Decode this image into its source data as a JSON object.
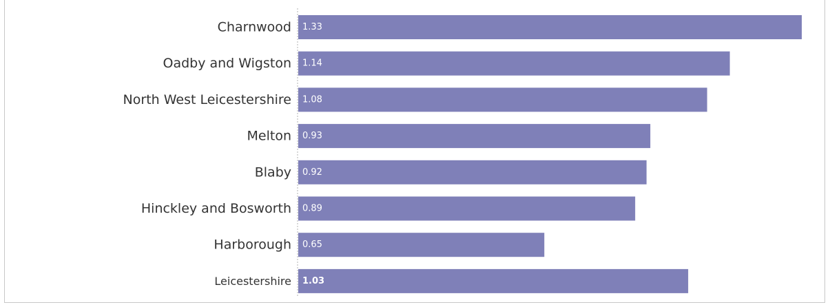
{
  "chart_data": {
    "type": "bar",
    "orientation": "horizontal",
    "categories": [
      "Charnwood",
      "Oadby and Wigston",
      "North West Leicestershire",
      "Melton",
      "Blaby",
      "Hinckley and Bosworth",
      "Harborough",
      "Leicestershire"
    ],
    "values": [
      1.33,
      1.14,
      1.08,
      0.93,
      0.92,
      0.89,
      0.65,
      1.03
    ],
    "data_labels": [
      "1.33",
      "1.14",
      "1.08",
      "0.93",
      "0.92",
      "0.89",
      "0.65",
      "1.03"
    ],
    "xlim": [
      0,
      1.35
    ],
    "bar_color": "#7f80b8",
    "label_color": "#ffffff",
    "title": "",
    "xlabel": "",
    "ylabel": "",
    "grid": false,
    "legend": "none"
  }
}
